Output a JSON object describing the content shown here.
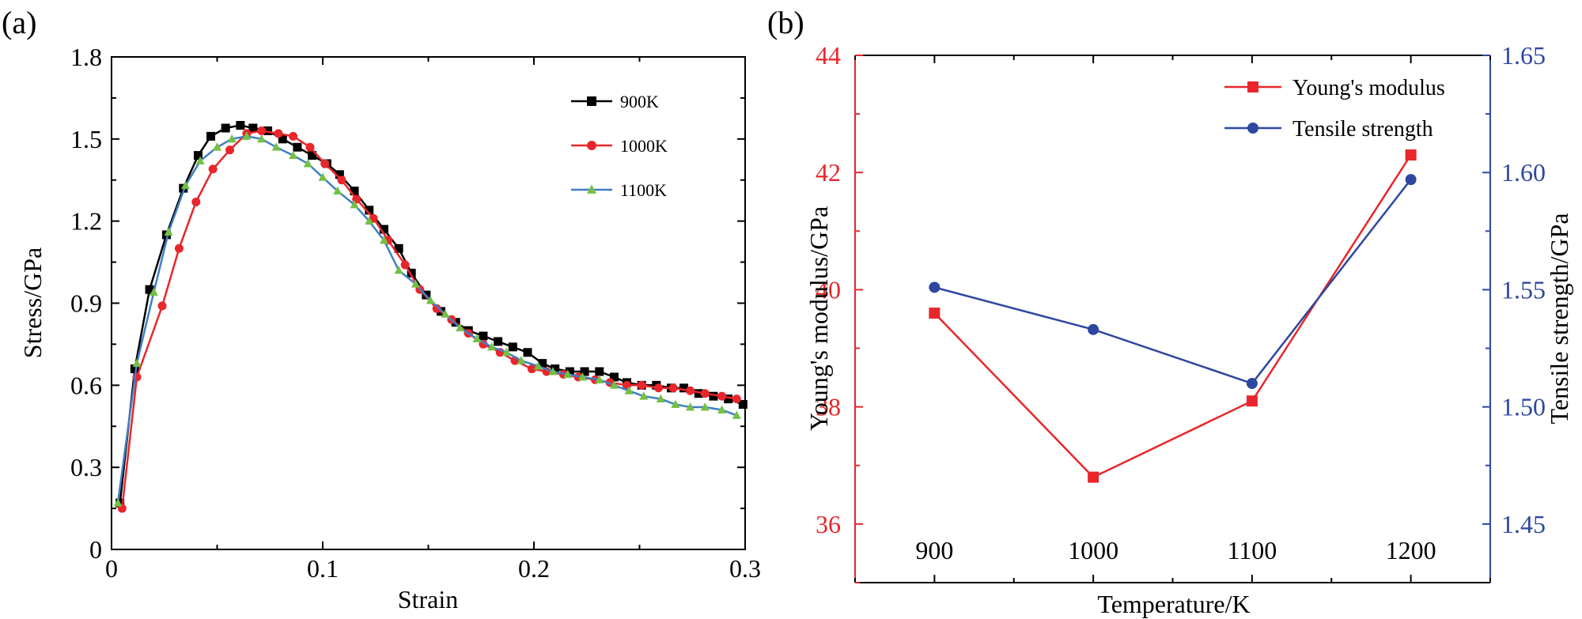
{
  "chart_data": [
    {
      "panel_label": "(a)",
      "type": "line",
      "xlabel": "Strain",
      "ylabel": "Stress/GPa",
      "xlim": [
        0,
        0.3
      ],
      "ylim": [
        0,
        1.8
      ],
      "xticks": [
        0,
        0.1,
        0.2,
        0.3
      ],
      "xtick_labels": [
        "0",
        "0.1",
        "0.2",
        "0.3"
      ],
      "yticks": [
        0,
        0.3,
        0.6,
        0.9,
        1.2,
        1.5,
        1.8
      ],
      "ytick_labels": [
        "0",
        "0.3",
        "0.6",
        "0.9",
        "1.2",
        "1.5",
        "1.8"
      ],
      "legend_position": "top-right",
      "series": [
        {
          "name": "900K",
          "color": "#000000",
          "marker": "square",
          "x": [
            0.004,
            0.011,
            0.018,
            0.026,
            0.034,
            0.041,
            0.047,
            0.054,
            0.061,
            0.067,
            0.074,
            0.081,
            0.088,
            0.095,
            0.102,
            0.108,
            0.115,
            0.122,
            0.129,
            0.136,
            0.142,
            0.149,
            0.156,
            0.163,
            0.169,
            0.176,
            0.183,
            0.19,
            0.197,
            0.204,
            0.21,
            0.217,
            0.224,
            0.231,
            0.238,
            0.244,
            0.251,
            0.258,
            0.265,
            0.271,
            0.278,
            0.285,
            0.292,
            0.299
          ],
          "y": [
            0.17,
            0.66,
            0.95,
            1.15,
            1.32,
            1.44,
            1.51,
            1.54,
            1.55,
            1.54,
            1.53,
            1.5,
            1.47,
            1.44,
            1.41,
            1.37,
            1.31,
            1.24,
            1.17,
            1.1,
            1.01,
            0.93,
            0.87,
            0.83,
            0.8,
            0.78,
            0.76,
            0.74,
            0.72,
            0.68,
            0.66,
            0.65,
            0.65,
            0.65,
            0.63,
            0.61,
            0.6,
            0.6,
            0.59,
            0.59,
            0.57,
            0.56,
            0.55,
            0.53
          ]
        },
        {
          "name": "1000K",
          "color": "#e8262b",
          "marker": "circle",
          "x": [
            0.005,
            0.012,
            0.024,
            0.032,
            0.04,
            0.048,
            0.056,
            0.064,
            0.071,
            0.079,
            0.086,
            0.094,
            0.101,
            0.109,
            0.116,
            0.124,
            0.131,
            0.139,
            0.146,
            0.154,
            0.161,
            0.169,
            0.176,
            0.184,
            0.191,
            0.199,
            0.206,
            0.214,
            0.221,
            0.229,
            0.236,
            0.244,
            0.251,
            0.259,
            0.266,
            0.274,
            0.281,
            0.289,
            0.296
          ],
          "y": [
            0.15,
            0.63,
            0.89,
            1.1,
            1.27,
            1.39,
            1.46,
            1.52,
            1.53,
            1.52,
            1.51,
            1.47,
            1.41,
            1.35,
            1.28,
            1.21,
            1.13,
            1.04,
            0.95,
            0.88,
            0.84,
            0.79,
            0.75,
            0.72,
            0.69,
            0.66,
            0.65,
            0.64,
            0.63,
            0.62,
            0.61,
            0.6,
            0.6,
            0.59,
            0.59,
            0.58,
            0.57,
            0.56,
            0.55
          ]
        },
        {
          "name": "1100K",
          "color": "#73c043",
          "line_color": "#3f7fc6",
          "marker": "triangle",
          "x": [
            0.003,
            0.012,
            0.02,
            0.027,
            0.035,
            0.042,
            0.05,
            0.057,
            0.064,
            0.071,
            0.078,
            0.086,
            0.093,
            0.1,
            0.107,
            0.115,
            0.122,
            0.129,
            0.136,
            0.144,
            0.151,
            0.158,
            0.165,
            0.173,
            0.18,
            0.187,
            0.194,
            0.202,
            0.209,
            0.216,
            0.223,
            0.231,
            0.238,
            0.245,
            0.252,
            0.26,
            0.267,
            0.274,
            0.281,
            0.289,
            0.296
          ],
          "y": [
            0.17,
            0.68,
            0.94,
            1.16,
            1.33,
            1.42,
            1.47,
            1.5,
            1.51,
            1.5,
            1.47,
            1.44,
            1.41,
            1.36,
            1.31,
            1.26,
            1.2,
            1.13,
            1.02,
            0.97,
            0.91,
            0.86,
            0.81,
            0.77,
            0.74,
            0.72,
            0.69,
            0.67,
            0.65,
            0.64,
            0.63,
            0.62,
            0.6,
            0.58,
            0.56,
            0.55,
            0.53,
            0.52,
            0.52,
            0.51,
            0.49
          ]
        }
      ]
    },
    {
      "panel_label": "(b)",
      "type": "line",
      "xlabel": "Temperature/K",
      "ylabel": "Young's modulus/GPa",
      "y2label": "Tensile strength/GPa",
      "categories": [
        900,
        1000,
        1100,
        1200
      ],
      "xlim": [
        850,
        1250
      ],
      "xticks": [
        900,
        1000,
        1100,
        1200
      ],
      "xtick_labels": [
        "900",
        "1000",
        "1100",
        "1200"
      ],
      "ylim": [
        35,
        44
      ],
      "yticks": [
        36,
        38,
        40,
        42,
        44
      ],
      "ytick_labels": [
        "36",
        "38",
        "40",
        "42",
        "44"
      ],
      "y2lim": [
        1.425,
        1.65
      ],
      "y2ticks": [
        1.45,
        1.5,
        1.55,
        1.6,
        1.65
      ],
      "y2tick_labels": [
        "1.45",
        "1.50",
        "1.55",
        "1.60",
        "1.65"
      ],
      "legend_position": "top-right",
      "left_axis_color": "#e8262b",
      "right_axis_color": "#2e47a0",
      "series": [
        {
          "name": "Young's modulus",
          "axis": "left",
          "color": "#e8262b",
          "marker": "square",
          "values": [
            39.6,
            36.8,
            38.1,
            42.3
          ]
        },
        {
          "name": "Tensile strength",
          "axis": "right",
          "color": "#2e47a0",
          "marker": "circle",
          "values": [
            1.551,
            1.533,
            1.51,
            1.597
          ]
        }
      ]
    }
  ]
}
